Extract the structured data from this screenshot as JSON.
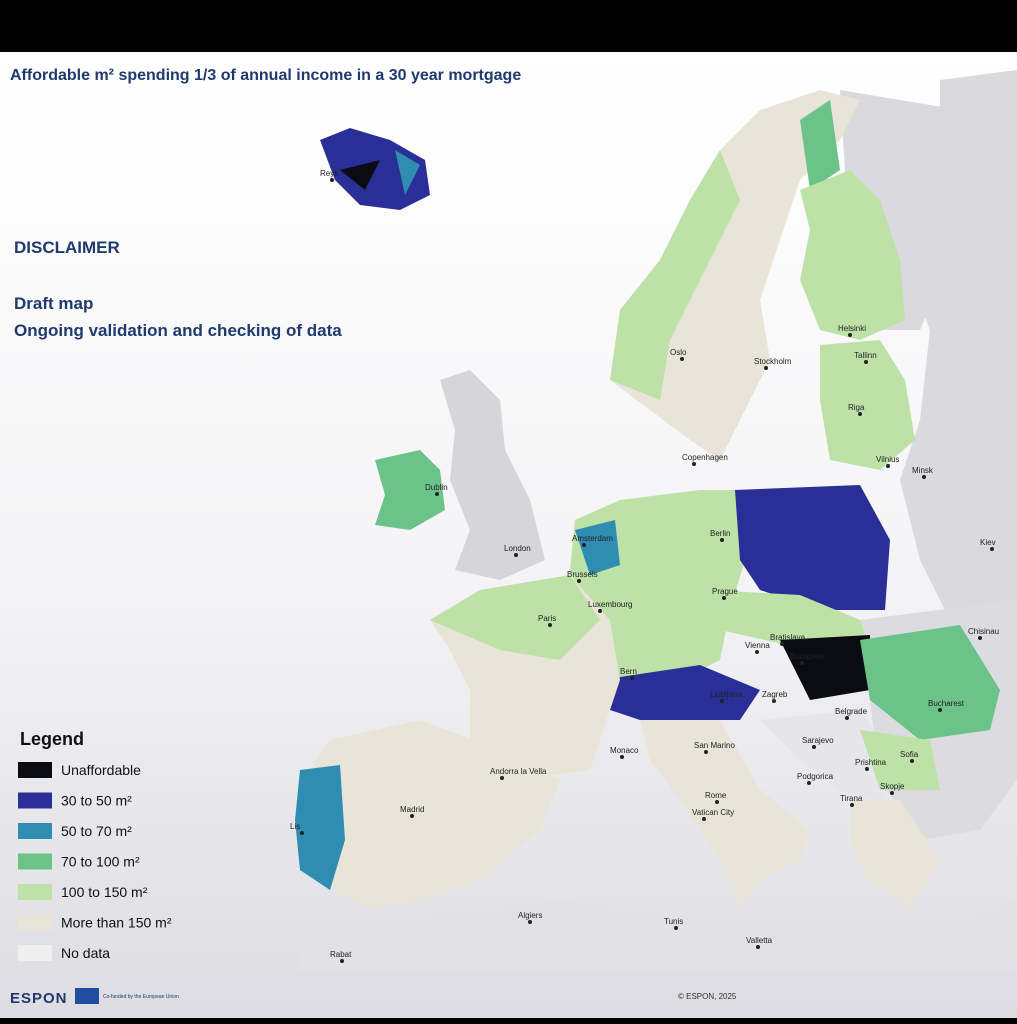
{
  "header": {
    "title": "Affordable m² spending 1/3 of annual income in a 30 year mortgage"
  },
  "disclaimer": {
    "heading": "DISCLAIMER",
    "lines": [
      "Draft map",
      "Ongoing validation and checking of data"
    ]
  },
  "cities": [
    "Reyk",
    "Oslo",
    "Stockholm",
    "Helsinki",
    "Tallinn",
    "Riga",
    "Copenhagen",
    "Vilnius",
    "Minsk",
    "Dublin",
    "London",
    "Amsterdam",
    "Berlin",
    "Brussels",
    "Luxembourg",
    "Paris",
    "Prague",
    "Kiev",
    "Bratislava",
    "Vienna",
    "Budapest",
    "Chisinau",
    "Bern",
    "Ljubljana",
    "Zagreb",
    "Bucharest",
    "Belgrade",
    "Sarajevo",
    "Monaco",
    "San Marino",
    "Podgorica",
    "Prishtina",
    "Sofia",
    "Skopje",
    "Tirana",
    "Andorra la Vella",
    "Madrid",
    "Lis",
    "Rome",
    "Vatican City",
    "Algiers",
    "Tunis",
    "Valletta",
    "Rabat"
  ],
  "legend": {
    "title": "Legend",
    "items": [
      {
        "label": "Unaffordable",
        "color": "#0b0b14"
      },
      {
        "label": "30 to 50 m²",
        "color": "#2a2f98"
      },
      {
        "label": "50 to 70 m²",
        "color": "#2f8db2"
      },
      {
        "label": "70 to 100 m²",
        "color": "#6cc38a"
      },
      {
        "label": "100 to 150 m²",
        "color": "#bde1a6"
      },
      {
        "label": "More than 150  m²",
        "color": "#e8e4d8"
      },
      {
        "label": "No data",
        "color": "#efefef"
      }
    ]
  },
  "footer": {
    "logo": "ESPON",
    "funding": "Co-funded by the European Union",
    "copyright": "© ESPON, 2025"
  }
}
